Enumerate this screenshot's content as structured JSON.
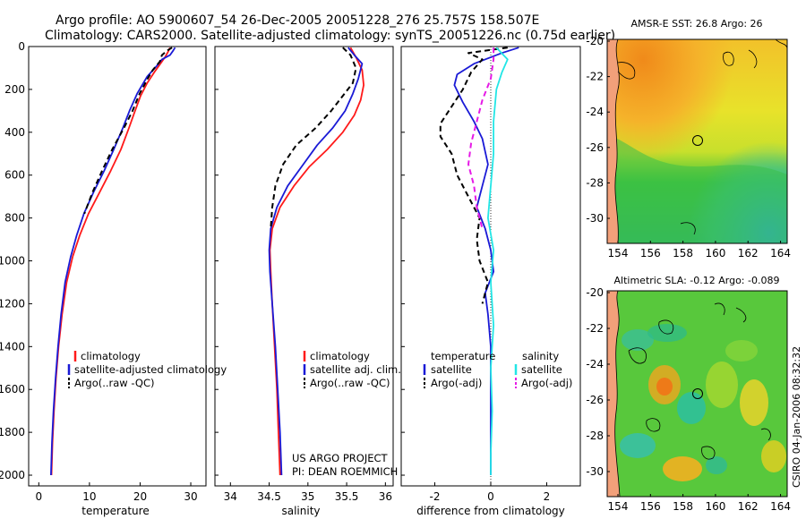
{
  "header": {
    "line1": "Argo profile: AO 5900607_54 26-Dec-2005 20051228_276 25.757S 158.507E",
    "line2": "Climatology: CARS2000. Satellite-adjusted climatology: synTS_20051226.nc (0.75d earlier)"
  },
  "colors": {
    "climatology": "#ff1a1a",
    "satellite": "#1a1ad6",
    "argo": "#000000",
    "salinity_satellite": "#22e6e6",
    "salinity_argo": "#e61ae6"
  },
  "chart_data": [
    {
      "type": "line",
      "panel": "temperature",
      "xlabel": "temperature",
      "xlim": [
        -2,
        33
      ],
      "xticks": [
        0,
        10,
        20,
        30
      ],
      "ylim": [
        0,
        2050
      ],
      "yticks": [
        0,
        200,
        400,
        600,
        800,
        1000,
        1200,
        1400,
        1600,
        1800,
        2000
      ],
      "y_inverted": true,
      "legend": [
        "climatology",
        "satellite-adjusted climatology",
        "Argo(..raw -QC)"
      ],
      "series": [
        {
          "name": "climatology",
          "style": "solid",
          "color_key": "climatology",
          "points": [
            [
              25.9,
              5
            ],
            [
              25.5,
              25
            ],
            [
              24.9,
              50
            ],
            [
              24.0,
              80
            ],
            [
              22.8,
              120
            ],
            [
              21.4,
              170
            ],
            [
              20.1,
              230
            ],
            [
              19.0,
              300
            ],
            [
              17.8,
              380
            ],
            [
              16.2,
              480
            ],
            [
              14.2,
              580
            ],
            [
              12.0,
              680
            ],
            [
              9.8,
              780
            ],
            [
              8.1,
              880
            ],
            [
              6.7,
              980
            ],
            [
              5.5,
              1100
            ],
            [
              4.6,
              1250
            ],
            [
              3.9,
              1400
            ],
            [
              3.4,
              1550
            ],
            [
              3.0,
              1700
            ],
            [
              2.7,
              1850
            ],
            [
              2.5,
              2000
            ]
          ]
        },
        {
          "name": "satellite-adjusted climatology",
          "style": "solid",
          "color_key": "satellite",
          "points": [
            [
              26.9,
              5
            ],
            [
              26.5,
              20
            ],
            [
              25.9,
              40
            ],
            [
              24.3,
              60
            ],
            [
              23.3,
              90
            ],
            [
              21.4,
              140
            ],
            [
              19.4,
              220
            ],
            [
              17.9,
              300
            ],
            [
              16.6,
              380
            ],
            [
              14.8,
              480
            ],
            [
              12.9,
              580
            ],
            [
              10.8,
              680
            ],
            [
              8.9,
              780
            ],
            [
              7.5,
              880
            ],
            [
              6.3,
              980
            ],
            [
              5.2,
              1100
            ],
            [
              4.4,
              1250
            ],
            [
              3.8,
              1400
            ],
            [
              3.3,
              1550
            ],
            [
              2.9,
              1700
            ],
            [
              2.6,
              1850
            ],
            [
              2.4,
              2000
            ]
          ]
        },
        {
          "name": "Argo(..raw -QC)",
          "style": "dashed",
          "color_key": "argo",
          "points": [
            [
              26.3,
              5
            ],
            [
              25.3,
              20
            ],
            [
              24.3,
              40
            ],
            [
              23.9,
              70
            ],
            [
              22.5,
              110
            ],
            [
              21.5,
              150
            ],
            [
              19.9,
              220
            ],
            [
              18.5,
              300
            ],
            [
              16.8,
              380
            ],
            [
              14.5,
              480
            ],
            [
              12.5,
              580
            ],
            [
              10.6,
              680
            ],
            [
              9.0,
              780
            ]
          ]
        }
      ]
    },
    {
      "type": "line",
      "panel": "salinity",
      "xlabel": "salinity",
      "xlim": [
        33.8,
        36.1
      ],
      "xticks": [
        34,
        34.5,
        35,
        35.5,
        36
      ],
      "ylim": [
        0,
        2050
      ],
      "y_inverted": true,
      "legend": [
        "climatology",
        "satellite adj. clim.",
        "Argo(..raw -QC)"
      ],
      "series": [
        {
          "name": "climatology",
          "style": "solid",
          "color_key": "climatology",
          "points": [
            [
              35.55,
              5
            ],
            [
              35.62,
              50
            ],
            [
              35.7,
              110
            ],
            [
              35.72,
              180
            ],
            [
              35.68,
              250
            ],
            [
              35.6,
              320
            ],
            [
              35.45,
              400
            ],
            [
              35.25,
              480
            ],
            [
              35.02,
              560
            ],
            [
              34.82,
              650
            ],
            [
              34.64,
              750
            ],
            [
              34.54,
              850
            ],
            [
              34.51,
              950
            ],
            [
              34.52,
              1050
            ],
            [
              34.54,
              1200
            ],
            [
              34.57,
              1400
            ],
            [
              34.6,
              1600
            ],
            [
              34.62,
              1800
            ],
            [
              34.64,
              2000
            ]
          ]
        },
        {
          "name": "satellite adj. clim.",
          "style": "solid",
          "color_key": "satellite",
          "points": [
            [
              35.52,
              5
            ],
            [
              35.6,
              40
            ],
            [
              35.7,
              80
            ],
            [
              35.65,
              150
            ],
            [
              35.58,
              220
            ],
            [
              35.48,
              300
            ],
            [
              35.32,
              380
            ],
            [
              35.12,
              460
            ],
            [
              34.92,
              560
            ],
            [
              34.74,
              650
            ],
            [
              34.6,
              750
            ],
            [
              34.52,
              850
            ],
            [
              34.5,
              950
            ],
            [
              34.51,
              1050
            ],
            [
              34.54,
              1200
            ],
            [
              34.58,
              1400
            ],
            [
              34.61,
              1600
            ],
            [
              34.64,
              1800
            ],
            [
              34.66,
              2000
            ]
          ]
        },
        {
          "name": "Argo(..raw -QC)",
          "style": "dashed",
          "color_key": "argo",
          "points": [
            [
              35.45,
              5
            ],
            [
              35.55,
              40
            ],
            [
              35.62,
              100
            ],
            [
              35.58,
              170
            ],
            [
              35.45,
              230
            ],
            [
              35.3,
              300
            ],
            [
              35.1,
              380
            ],
            [
              34.85,
              460
            ],
            [
              34.68,
              550
            ],
            [
              34.58,
              650
            ],
            [
              34.54,
              750
            ],
            [
              34.52,
              850
            ]
          ]
        }
      ]
    },
    {
      "type": "line",
      "panel": "difference",
      "xlabel": "difference from climatology",
      "xlim": [
        -3.2,
        3.2
      ],
      "xticks": [
        -2,
        0,
        2
      ],
      "ylim": [
        0,
        2050
      ],
      "y_inverted": true,
      "legend_headers": [
        "temperature",
        "salinity"
      ],
      "legend": [
        "satellite",
        "Argo(-adj)",
        "satellite",
        "Argo(-adj)"
      ],
      "series": [
        {
          "name": "temperature satellite",
          "style": "solid",
          "color_key": "satellite",
          "points": [
            [
              1.0,
              5
            ],
            [
              0.4,
              30
            ],
            [
              -0.6,
              80
            ],
            [
              -1.2,
              130
            ],
            [
              -1.3,
              180
            ],
            [
              -1.0,
              260
            ],
            [
              -0.6,
              350
            ],
            [
              -0.3,
              430
            ],
            [
              -0.1,
              550
            ],
            [
              -0.3,
              650
            ],
            [
              -0.5,
              750
            ],
            [
              -0.2,
              850
            ],
            [
              0.0,
              950
            ],
            [
              0.1,
              1050
            ],
            [
              -0.2,
              1150
            ],
            [
              -0.1,
              1250
            ],
            [
              0.0,
              1400
            ],
            [
              0.0,
              1600
            ],
            [
              0.0,
              1800
            ],
            [
              0.0,
              2000
            ]
          ]
        },
        {
          "name": "temperature Argo(-adj)",
          "style": "dashed",
          "color_key": "argo",
          "points": [
            [
              0.6,
              5
            ],
            [
              -0.8,
              30
            ],
            [
              -0.3,
              60
            ],
            [
              -0.7,
              120
            ],
            [
              -1.0,
              200
            ],
            [
              -1.4,
              280
            ],
            [
              -1.8,
              360
            ],
            [
              -1.8,
              420
            ],
            [
              -1.4,
              500
            ],
            [
              -1.2,
              600
            ],
            [
              -0.8,
              700
            ],
            [
              -0.4,
              800
            ],
            [
              -0.5,
              900
            ],
            [
              -0.4,
              1000
            ],
            [
              -0.1,
              1100
            ],
            [
              -0.3,
              1200
            ]
          ]
        },
        {
          "name": "salinity satellite",
          "style": "solid",
          "color_key": "salinity_satellite",
          "points": [
            [
              0.2,
              5
            ],
            [
              0.6,
              60
            ],
            [
              0.4,
              120
            ],
            [
              0.2,
              200
            ],
            [
              0.1,
              350
            ],
            [
              0.1,
              500
            ],
            [
              0.0,
              650
            ],
            [
              -0.1,
              800
            ],
            [
              0.1,
              950
            ],
            [
              0.0,
              1100
            ],
            [
              0.1,
              1300
            ],
            [
              0.0,
              1500
            ],
            [
              0.05,
              1700
            ],
            [
              0.0,
              1900
            ],
            [
              0.0,
              2000
            ]
          ]
        },
        {
          "name": "salinity Argo(-adj)",
          "style": "dashed",
          "color_key": "salinity_argo",
          "points": [
            [
              0.1,
              5
            ],
            [
              0.1,
              60
            ],
            [
              0.0,
              150
            ],
            [
              -0.3,
              250
            ],
            [
              -0.5,
              350
            ],
            [
              -0.7,
              450
            ],
            [
              -0.8,
              550
            ],
            [
              -0.6,
              650
            ],
            [
              -0.5,
              750
            ],
            [
              -0.3,
              850
            ]
          ]
        }
      ]
    }
  ],
  "maps": [
    {
      "title": "AMSR-E SST: 26.8 Argo: 26",
      "xticks": [
        "154",
        "156",
        "158",
        "160",
        "162",
        "164"
      ],
      "yticks": [
        "-20",
        "-22",
        "-24",
        "-26",
        "-28",
        "-30"
      ],
      "field": "sst"
    },
    {
      "title": "Altimetric SLA: -0.12 Argo: -0.089",
      "xticks": [
        "154",
        "156",
        "158",
        "160",
        "162",
        "164"
      ],
      "yticks": [
        "-20",
        "-22",
        "-24",
        "-26",
        "-28",
        "-30"
      ],
      "field": "sla"
    }
  ],
  "credit": {
    "project_line1": "US ARGO PROJECT",
    "project_line2": "PI: DEAN ROEMMICH",
    "timestamp": "CSIRO 04-Jan-2006 08:32:32"
  }
}
